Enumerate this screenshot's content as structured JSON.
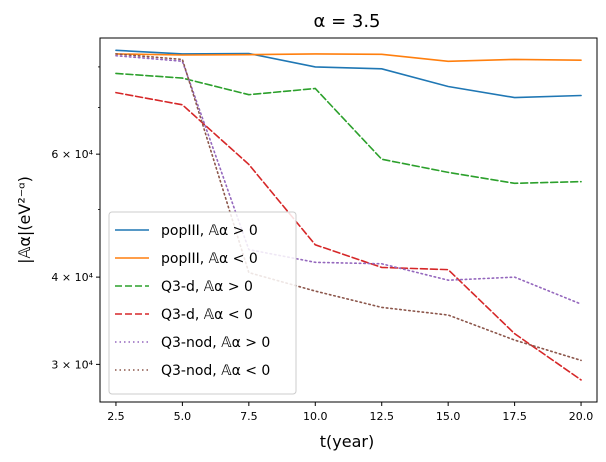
{
  "chart_data": {
    "type": "line",
    "title": "α = 3.5",
    "xlabel": "t(year)",
    "ylabel": "|𝔸α|(eV²⁻ᵅ)",
    "yscale": "log",
    "xlim": [
      1.9,
      20.6
    ],
    "ylim": [
      26500,
      88000
    ],
    "x": [
      2.5,
      5.0,
      7.5,
      10.0,
      12.5,
      15.0,
      17.5,
      20.0
    ],
    "x_ticks": [
      2.5,
      5.0,
      7.5,
      10.0,
      12.5,
      15.0,
      17.5,
      20.0
    ],
    "x_tick_labels": [
      "2.5",
      "5.0",
      "7.5",
      "10.0",
      "12.5",
      "15.0",
      "17.5",
      "20.0"
    ],
    "y_ticks": [
      30000,
      40000,
      60000
    ],
    "y_tick_labels": [
      "3 × 10⁴",
      "4 × 10⁴",
      "6 × 10⁴"
    ],
    "legend_position": "lower-left",
    "series": [
      {
        "name": "popIII, 𝔸α > 0",
        "color": "#1f77b4",
        "style": "solid",
        "values": [
          84500,
          83500,
          83600,
          80000,
          79500,
          75000,
          72300,
          72800
        ]
      },
      {
        "name": "popIII, 𝔸α < 0",
        "color": "#ff7f0e",
        "style": "solid",
        "values": [
          83500,
          83200,
          83300,
          83500,
          83400,
          81500,
          82000,
          81800
        ]
      },
      {
        "name": "Q3-d, 𝔸α > 0",
        "color": "#2ca02c",
        "style": "dashed",
        "values": [
          78300,
          77100,
          73000,
          74500,
          59000,
          56500,
          54500,
          54800
        ]
      },
      {
        "name": "Q3-d, 𝔸α < 0",
        "color": "#d62728",
        "style": "dashed",
        "values": [
          73500,
          70600,
          58000,
          44500,
          41300,
          41000,
          33200,
          28500
        ]
      },
      {
        "name": "Q3-nod, 𝔸α > 0",
        "color": "#9467bd",
        "style": "dotted",
        "values": [
          83000,
          81500,
          43800,
          42000,
          41800,
          39600,
          40000,
          36600
        ]
      },
      {
        "name": "Q3-nod, 𝔸α < 0",
        "color": "#8c564b",
        "style": "dotted",
        "values": [
          83500,
          82000,
          40600,
          38200,
          36200,
          35300,
          32500,
          30400
        ]
      }
    ]
  }
}
